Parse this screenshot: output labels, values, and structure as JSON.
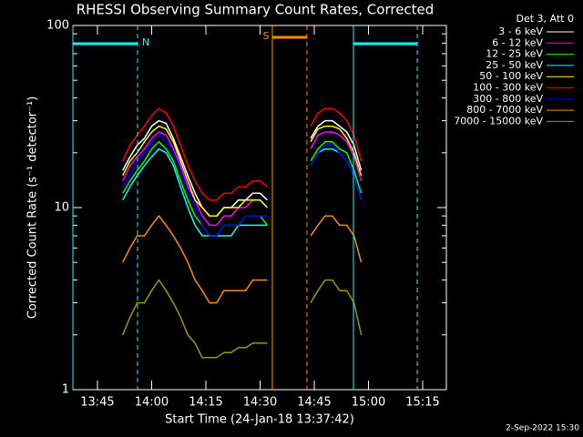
{
  "chart_data": {
    "type": "line",
    "title": "RHESSI Observing Summary Count Rates, Corrected",
    "x_label": "Start Time (24-Jan-18 13:37:42)",
    "y_label": "Corrected Count Rate (s⁻¹ detector⁻¹)",
    "legend_title": "Det 3, Att 0",
    "footer": "2-Sep-2022 15:30",
    "log_y": true,
    "ylim": [
      1,
      100
    ],
    "yticks": [
      1,
      10,
      100
    ],
    "yminorticks": [
      2,
      3,
      4,
      5,
      6,
      7,
      8,
      9,
      20,
      30,
      40,
      50,
      60,
      70,
      80,
      90
    ],
    "xlim": [
      "13:38:12",
      "15:21:33"
    ],
    "xticks": [
      "13:45",
      "14:00",
      "14:15",
      "14:30",
      "14:45",
      "15:00",
      "15:15"
    ],
    "intervals": [
      {
        "label": "N",
        "start": "13:38:12",
        "end": "13:56:06",
        "color": "#00ffff"
      },
      {
        "label": "S",
        "start": "14:33:24",
        "end": "14:42:58",
        "color": "#ff8c00"
      },
      {
        "start": "14:55:50",
        "end": "15:13:29",
        "color": "#00ffff"
      }
    ],
    "x": [
      "13:52",
      "13:54",
      "13:56",
      "13:58",
      "14:00",
      "14:02",
      "14:04",
      "14:06",
      "14:08",
      "14:10",
      "14:12",
      "14:14",
      "14:16",
      "14:18",
      "14:20",
      "14:22",
      "14:24",
      "14:26",
      "14:28",
      "14:30",
      "14:32",
      "14:38",
      "14:44",
      "14:46",
      "14:48",
      "14:50",
      "14:52",
      "14:54",
      "14:56",
      "14:58"
    ],
    "series": [
      {
        "name": "3 - 6 keV",
        "color": "#ffffff",
        "values": [
          16,
          19,
          22,
          24,
          28,
          30,
          29,
          24,
          19,
          15,
          12,
          10,
          9,
          9,
          10,
          10,
          11,
          11,
          12,
          12,
          11,
          null,
          24,
          28,
          30,
          30,
          28,
          26,
          22,
          16
        ]
      },
      {
        "name": "6 - 12 keV",
        "color": "#ff00ff",
        "values": [
          14,
          17,
          19,
          21,
          24,
          26,
          25,
          21,
          17,
          13,
          11,
          9,
          8,
          8,
          9,
          9,
          10,
          10,
          11,
          11,
          10,
          null,
          21,
          25,
          26,
          26,
          25,
          23,
          19,
          14
        ]
      },
      {
        "name": "12 - 25 keV",
        "color": "#00ff00",
        "values": [
          12,
          14,
          16,
          18,
          21,
          23,
          21,
          18,
          14,
          11,
          9,
          8,
          7,
          7,
          8,
          8,
          8,
          9,
          9,
          9,
          8,
          null,
          18,
          21,
          23,
          23,
          21,
          20,
          16,
          12
        ]
      },
      {
        "name": "25 - 50 keV",
        "color": "#00ffff",
        "values": [
          11,
          13,
          15,
          17,
          19,
          21,
          20,
          17,
          13,
          10,
          8,
          7,
          7,
          7,
          7,
          7,
          8,
          8,
          8,
          8,
          8,
          null,
          17,
          20,
          21,
          21,
          20,
          18,
          15,
          11
        ]
      },
      {
        "name": "50 - 100 keV",
        "color": "#ffff00",
        "values": [
          15,
          18,
          20,
          23,
          26,
          28,
          27,
          23,
          18,
          14,
          11,
          10,
          9,
          9,
          10,
          10,
          10,
          11,
          11,
          11,
          10,
          null,
          23,
          27,
          28,
          28,
          27,
          24,
          20,
          15
        ]
      },
      {
        "name": "100 - 300 keV",
        "color": "#ff0000",
        "values": [
          18,
          22,
          25,
          28,
          32,
          35,
          33,
          28,
          22,
          17,
          14,
          12,
          11,
          11,
          12,
          12,
          13,
          13,
          14,
          14,
          13,
          null,
          28,
          33,
          35,
          35,
          33,
          30,
          25,
          18
        ]
      },
      {
        "name": "300 - 800 keV",
        "color": "#0000ff",
        "values": [
          13,
          15,
          18,
          20,
          23,
          25,
          23,
          20,
          16,
          12,
          10,
          8,
          7,
          7,
          8,
          8,
          8,
          9,
          9,
          9,
          9,
          null,
          17,
          20,
          22,
          22,
          20,
          18,
          15,
          11
        ]
      },
      {
        "name": "800 - 7000 keV",
        "color": "#ff8c00",
        "values": [
          5,
          6,
          7,
          7,
          8,
          9,
          8,
          7,
          6,
          5,
          4,
          3.5,
          3,
          3,
          3.5,
          3.5,
          3.5,
          3.5,
          4,
          4,
          4,
          null,
          7,
          8,
          9,
          9,
          8,
          8,
          7,
          5
        ]
      },
      {
        "name": "7000 - 15000 keV",
        "color": "#999900",
        "values": [
          2,
          2.5,
          3,
          3,
          3.5,
          4,
          3.5,
          3,
          2.5,
          2,
          1.8,
          1.5,
          1.5,
          1.5,
          1.6,
          1.6,
          1.7,
          1.7,
          1.8,
          1.8,
          1.8,
          null,
          3,
          3.5,
          4,
          4,
          3.5,
          3.5,
          3,
          2
        ]
      }
    ]
  }
}
